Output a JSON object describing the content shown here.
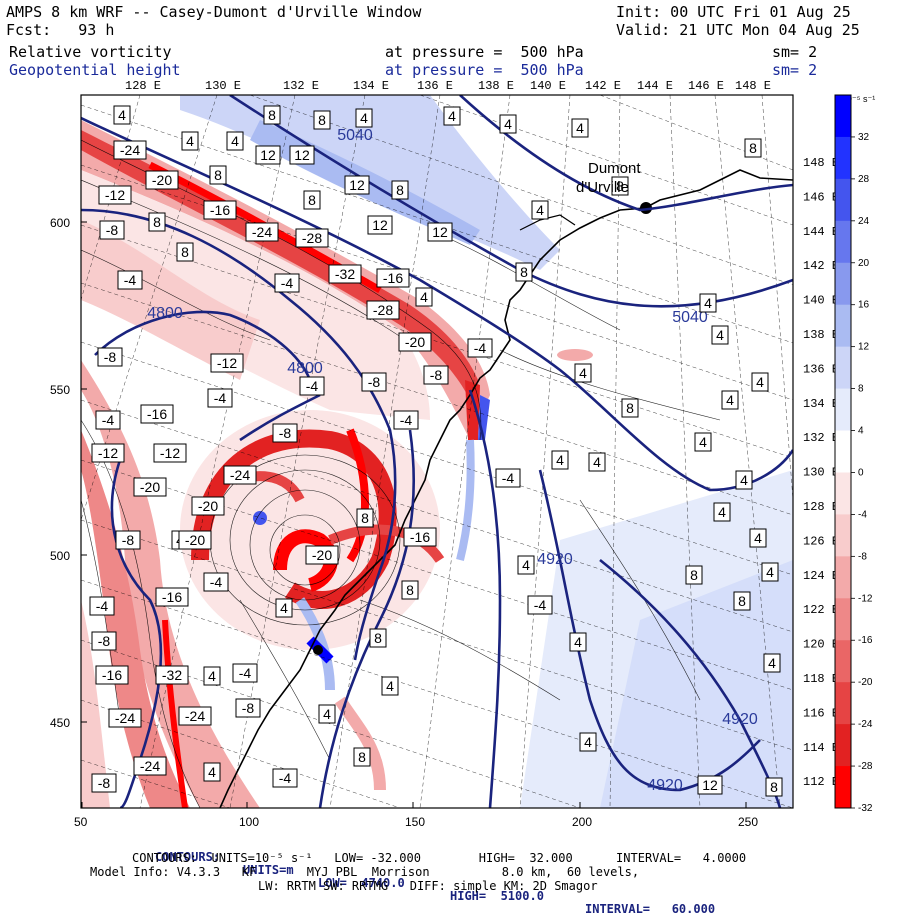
{
  "header": {
    "title": "AMPS 8 km WRF -- Casey-Dumont d'Urville Window",
    "init": "Init: 00 UTC Fri 01 Aug 25",
    "fcst": "Fcst:   93 h",
    "valid": "Valid: 21 UTC Mon 04 Aug 25",
    "field1": "Relative vorticity",
    "field1_pressure": "at pressure =  500 hPa",
    "field1_sm": "sm= 2",
    "field2": "Geopotential height",
    "field2_pressure": "at pressure =  500 hPa",
    "field2_sm": "sm= 2"
  },
  "lon_labels_top": [
    "128 E",
    "130 E",
    "132 E",
    "134 E",
    "136 E",
    "138 E",
    "140 E",
    "142 E",
    "144 E",
    "146 E",
    "148 E"
  ],
  "lat_labels_right": [
    "148 E",
    "146 E",
    "144 E",
    "142 E",
    "140 E",
    "138 E",
    "136 E",
    "134 E",
    "132 E",
    "130 E",
    "128 E",
    "126 E",
    "124 E",
    "122 E",
    "120 E",
    "118 E",
    "116 E",
    "114 E",
    "112 E"
  ],
  "x_ticks": [
    "50",
    "100",
    "150",
    "200",
    "250"
  ],
  "y_ticks": [
    "600",
    "550",
    "500",
    "450"
  ],
  "place_label": [
    "Dumont",
    "d'Urville"
  ],
  "height_labels": [
    {
      "text": "5040",
      "x": 355,
      "y": 140
    },
    {
      "text": "5040",
      "x": 690,
      "y": 322
    },
    {
      "text": "4800",
      "x": 165,
      "y": 318
    },
    {
      "text": "4800",
      "x": 305,
      "y": 373
    },
    {
      "text": "4920",
      "x": 555,
      "y": 564
    },
    {
      "text": "4920",
      "x": 740,
      "y": 724
    },
    {
      "text": "4920",
      "x": 665,
      "y": 790
    }
  ],
  "vort_labels": [
    {
      "text": "4",
      "x": 122,
      "y": 115
    },
    {
      "text": "8",
      "x": 272,
      "y": 115
    },
    {
      "text": "8",
      "x": 322,
      "y": 120
    },
    {
      "text": "4",
      "x": 364,
      "y": 118
    },
    {
      "text": "4",
      "x": 452,
      "y": 116
    },
    {
      "text": "4",
      "x": 508,
      "y": 124
    },
    {
      "text": "4",
      "x": 580,
      "y": 128
    },
    {
      "text": "8",
      "x": 753,
      "y": 148
    },
    {
      "text": "4",
      "x": 190,
      "y": 141
    },
    {
      "text": "4",
      "x": 235,
      "y": 141
    },
    {
      "text": "12",
      "x": 268,
      "y": 155
    },
    {
      "text": "12",
      "x": 302,
      "y": 155
    },
    {
      "text": "-24",
      "x": 130,
      "y": 150
    },
    {
      "text": "-20",
      "x": 162,
      "y": 180
    },
    {
      "text": "8",
      "x": 218,
      "y": 175
    },
    {
      "text": "12",
      "x": 357,
      "y": 185
    },
    {
      "text": "8",
      "x": 400,
      "y": 190
    },
    {
      "text": "8",
      "x": 620,
      "y": 186
    },
    {
      "text": "-12",
      "x": 115,
      "y": 195
    },
    {
      "text": "8",
      "x": 312,
      "y": 200
    },
    {
      "text": "4",
      "x": 540,
      "y": 210
    },
    {
      "text": "-16",
      "x": 220,
      "y": 210
    },
    {
      "text": "12",
      "x": 380,
      "y": 225
    },
    {
      "text": "12",
      "x": 440,
      "y": 232
    },
    {
      "text": "-8",
      "x": 112,
      "y": 230
    },
    {
      "text": "8",
      "x": 157,
      "y": 222
    },
    {
      "text": "-24",
      "x": 262,
      "y": 232
    },
    {
      "text": "-28",
      "x": 312,
      "y": 238
    },
    {
      "text": "8",
      "x": 185,
      "y": 252
    },
    {
      "text": "8",
      "x": 524,
      "y": 272
    },
    {
      "text": "-4",
      "x": 130,
      "y": 280
    },
    {
      "text": "-4",
      "x": 287,
      "y": 283
    },
    {
      "text": "-32",
      "x": 345,
      "y": 274
    },
    {
      "text": "-16",
      "x": 393,
      "y": 278
    },
    {
      "text": "4",
      "x": 424,
      "y": 297
    },
    {
      "text": "-28",
      "x": 383,
      "y": 310
    },
    {
      "text": "4",
      "x": 708,
      "y": 303
    },
    {
      "text": "4",
      "x": 720,
      "y": 335
    },
    {
      "text": "-20",
      "x": 415,
      "y": 342
    },
    {
      "text": "-4",
      "x": 480,
      "y": 348
    },
    {
      "text": "-8",
      "x": 110,
      "y": 357
    },
    {
      "text": "-12",
      "x": 227,
      "y": 363
    },
    {
      "text": "-8",
      "x": 436,
      "y": 375
    },
    {
      "text": "4",
      "x": 583,
      "y": 373
    },
    {
      "text": "-4",
      "x": 312,
      "y": 386
    },
    {
      "text": "-8",
      "x": 374,
      "y": 382
    },
    {
      "text": "4",
      "x": 760,
      "y": 382
    },
    {
      "text": "-4",
      "x": 220,
      "y": 398
    },
    {
      "text": "8",
      "x": 630,
      "y": 408
    },
    {
      "text": "4",
      "x": 730,
      "y": 400
    },
    {
      "text": "-4",
      "x": 108,
      "y": 420
    },
    {
      "text": "-16",
      "x": 157,
      "y": 414
    },
    {
      "text": "-4",
      "x": 406,
      "y": 420
    },
    {
      "text": "-8",
      "x": 285,
      "y": 433
    },
    {
      "text": "-12",
      "x": 108,
      "y": 453
    },
    {
      "text": "-12",
      "x": 170,
      "y": 453
    },
    {
      "text": "4",
      "x": 703,
      "y": 442
    },
    {
      "text": "4",
      "x": 560,
      "y": 460
    },
    {
      "text": "4",
      "x": 597,
      "y": 462
    },
    {
      "text": "-24",
      "x": 240,
      "y": 475
    },
    {
      "text": "-20",
      "x": 150,
      "y": 487
    },
    {
      "text": "-4",
      "x": 508,
      "y": 478
    },
    {
      "text": "4",
      "x": 744,
      "y": 480
    },
    {
      "text": "-20",
      "x": 208,
      "y": 506
    },
    {
      "text": "8",
      "x": 365,
      "y": 518
    },
    {
      "text": "4",
      "x": 722,
      "y": 512
    },
    {
      "text": "-8",
      "x": 128,
      "y": 540
    },
    {
      "text": "4",
      "x": 180,
      "y": 540
    },
    {
      "text": "-20",
      "x": 195,
      "y": 540
    },
    {
      "text": "-16",
      "x": 420,
      "y": 537
    },
    {
      "text": "4",
      "x": 758,
      "y": 538
    },
    {
      "text": "-20",
      "x": 322,
      "y": 555
    },
    {
      "text": "4",
      "x": 526,
      "y": 565
    },
    {
      "text": "8",
      "x": 694,
      "y": 575
    },
    {
      "text": "-4",
      "x": 216,
      "y": 582
    },
    {
      "text": "8",
      "x": 410,
      "y": 590
    },
    {
      "text": "4",
      "x": 770,
      "y": 572
    },
    {
      "text": "-16",
      "x": 172,
      "y": 597
    },
    {
      "text": "-4",
      "x": 102,
      "y": 606
    },
    {
      "text": "-4",
      "x": 540,
      "y": 605
    },
    {
      "text": "8",
      "x": 742,
      "y": 601
    },
    {
      "text": "4",
      "x": 284,
      "y": 608
    },
    {
      "text": "-8",
      "x": 104,
      "y": 641
    },
    {
      "text": "8",
      "x": 378,
      "y": 638
    },
    {
      "text": "4",
      "x": 578,
      "y": 642
    },
    {
      "text": "4",
      "x": 772,
      "y": 663
    },
    {
      "text": "-16",
      "x": 112,
      "y": 675
    },
    {
      "text": "-32",
      "x": 172,
      "y": 675
    },
    {
      "text": "4",
      "x": 212,
      "y": 676
    },
    {
      "text": "-4",
      "x": 245,
      "y": 673
    },
    {
      "text": "4",
      "x": 390,
      "y": 686
    },
    {
      "text": "-24",
      "x": 125,
      "y": 718
    },
    {
      "text": "-24",
      "x": 195,
      "y": 716
    },
    {
      "text": "-8",
      "x": 248,
      "y": 708
    },
    {
      "text": "4",
      "x": 327,
      "y": 714
    },
    {
      "text": "4",
      "x": 588,
      "y": 742
    },
    {
      "text": "-24",
      "x": 150,
      "y": 766
    },
    {
      "text": "4",
      "x": 212,
      "y": 772
    },
    {
      "text": "8",
      "x": 362,
      "y": 757
    },
    {
      "text": "-8",
      "x": 104,
      "y": 783
    },
    {
      "text": "-4",
      "x": 285,
      "y": 778
    },
    {
      "text": "12",
      "x": 710,
      "y": 785
    },
    {
      "text": "8",
      "x": 774,
      "y": 787
    }
  ],
  "colorbar": {
    "units_label": "10⁻⁵ s⁻¹",
    "tick_labels": [
      "32",
      "28",
      "24",
      "20",
      "16",
      "12",
      "8",
      "4",
      "0",
      "-4",
      "-8",
      "-12",
      "-16",
      "-20",
      "-24",
      "-28",
      "-32"
    ],
    "colors": [
      "#0000ff",
      "#2233ff",
      "#4455ee",
      "#6677ee",
      "#8899ee",
      "#aabbf2",
      "#ccd5f7",
      "#e5ebfb",
      "#ffffff",
      "#fbe5e5",
      "#f8cccc",
      "#f3aaaa",
      "#ee8888",
      "#ea6666",
      "#e64444",
      "#e22222",
      "#ff0000"
    ]
  },
  "footer": {
    "line1_label1": "CONTOURS:",
    "line1_units": "UNITS=m",
    "line1_low": "LOW=  4740.0",
    "line1_high": "HIGH=  5100.0",
    "line1_interval": "INTERVAL=   60.000",
    "line2": "CONTOURS:  UNITS=10⁻⁵ s⁻¹   LOW= -32.000        HIGH=  32.000      INTERVAL=   4.0000",
    "line3": "Model Info: V4.3.3   KF       MYJ PBL  Morrison          8.0 km,  60 levels,",
    "line4": "LW: RRTM SW: RRTMG   DIFF: simple KM: 2D Smagor"
  },
  "colors": {
    "height_contour": "#1a237e",
    "header_blue": "#1a2a9a",
    "text": "#000000"
  }
}
